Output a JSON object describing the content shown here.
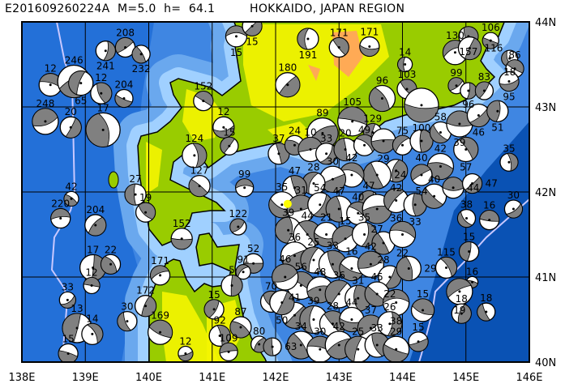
{
  "header": {
    "event_id": "E201609260224A",
    "magnitude": "M=5.0",
    "depth": "h=  64.1",
    "region": "HOKKAIDO, JAPAN REGION"
  },
  "map": {
    "lon_range": [
      138,
      146
    ],
    "lat_range": [
      40,
      44
    ],
    "lon_labels": [
      "138E",
      "139E",
      "140E",
      "141E",
      "142E",
      "143E",
      "144E",
      "145E",
      "146E"
    ],
    "lat_labels": [
      "44N",
      "43N",
      "42N",
      "41N",
      "40N"
    ],
    "grid": true,
    "colors": {
      "deep_ocean": "#2370d8",
      "ocean": "#3f86e2",
      "shelf": "#a0d0ff",
      "trench": "#0a52b4",
      "land": "#99cc00",
      "highland": "#f5f500",
      "peak": "#ffaa55",
      "plate_boundary": "#c8c8ff",
      "compression": "#808080",
      "epicenter": "#ffff00"
    },
    "epicenter": {
      "lon": 142.19,
      "lat": 41.86
    },
    "events": [
      [
        141.38,
        43.83,
        "15",
        5.6
      ],
      [
        141.63,
        43.95,
        "15",
        5.5
      ],
      [
        142.51,
        43.8,
        "191",
        5.6
      ],
      [
        143.0,
        43.7,
        "171",
        5.5
      ],
      [
        143.48,
        43.71,
        "171",
        5.5
      ],
      [
        139.63,
        43.7,
        "208",
        5.5
      ],
      [
        139.32,
        43.66,
        "241",
        5.5
      ],
      [
        139.88,
        43.62,
        "232",
        5.4
      ],
      [
        138.45,
        43.26,
        "12",
        5.7
      ],
      [
        138.82,
        43.3,
        "246",
        6.3
      ],
      [
        138.93,
        43.28,
        "65",
        5.8
      ],
      [
        139.25,
        43.16,
        "12",
        5.6
      ],
      [
        139.61,
        43.1,
        "204",
        5.4
      ],
      [
        138.37,
        42.83,
        "248",
        5.9
      ],
      [
        138.77,
        42.76,
        "20",
        5.6
      ],
      [
        139.28,
        42.73,
        "17",
        6.4
      ],
      [
        140.86,
        43.07,
        "152",
        5.5
      ],
      [
        141.18,
        42.76,
        "12",
        5.6
      ],
      [
        141.27,
        42.54,
        "15",
        5.4
      ],
      [
        140.72,
        42.43,
        "124",
        5.8
      ],
      [
        140.8,
        42.07,
        "127",
        5.6
      ],
      [
        141.51,
        42.05,
        "99",
        5.4
      ],
      [
        142.19,
        43.26,
        "180",
        5.8
      ],
      [
        144.04,
        43.5,
        "14",
        5.2
      ],
      [
        144.07,
        43.21,
        "103",
        5.5
      ],
      [
        144.3,
        43.02,
        "100",
        6.4
      ],
      [
        144.85,
        43.25,
        "99",
        5.3
      ],
      [
        145.04,
        43.19,
        "96",
        5.3
      ],
      [
        143.68,
        43.1,
        "96",
        5.9
      ],
      [
        143.21,
        42.83,
        "105",
        6.1
      ],
      [
        142.74,
        42.69,
        "89",
        6.2
      ],
      [
        143.53,
        42.7,
        "129",
        5.4
      ],
      [
        145.04,
        43.83,
        "157",
        5.5
      ],
      [
        145.39,
        43.78,
        "106",
        5.3
      ],
      [
        144.83,
        43.64,
        "130",
        5.8
      ],
      [
        145.06,
        43.69,
        "116",
        5.7
      ],
      [
        145.69,
        43.57,
        "18",
        5.3
      ],
      [
        145.77,
        43.45,
        "86",
        5.4
      ],
      [
        145.68,
        43.3,
        "95",
        5.5
      ],
      [
        145.29,
        43.19,
        "83",
        5.4
      ],
      [
        145.68,
        42.35,
        "35",
        5.4
      ],
      [
        138.78,
        41.92,
        "42",
        5.2
      ],
      [
        138.61,
        41.69,
        "220",
        5.5
      ],
      [
        139.16,
        41.61,
        "204",
        5.6
      ],
      [
        139.79,
        41.97,
        "27",
        5.6
      ],
      [
        139.95,
        41.76,
        "19",
        5.5
      ],
      [
        140.52,
        41.45,
        "152",
        5.6
      ],
      [
        141.41,
        41.59,
        "122",
        5.3
      ],
      [
        139.12,
        41.11,
        "17",
        5.9
      ],
      [
        139.4,
        41.15,
        "22",
        5.5
      ],
      [
        139.1,
        40.9,
        "12",
        5.3
      ],
      [
        138.72,
        40.73,
        "33",
        5.3
      ],
      [
        138.87,
        40.4,
        "13",
        6.1
      ],
      [
        139.11,
        40.33,
        "14",
        5.6
      ],
      [
        138.73,
        40.1,
        "15",
        5.5
      ],
      [
        140.18,
        41.02,
        "171",
        5.5
      ],
      [
        139.95,
        40.66,
        "172",
        5.6
      ],
      [
        139.66,
        40.48,
        "30",
        5.5
      ],
      [
        140.18,
        40.35,
        "169",
        5.8
      ],
      [
        140.58,
        40.1,
        "12",
        5.2
      ],
      [
        141.03,
        40.62,
        "15",
        5.5
      ],
      [
        141.12,
        40.31,
        "92",
        5.6
      ],
      [
        141.45,
        40.41,
        "87",
        5.6
      ],
      [
        141.26,
        40.12,
        "109",
        5.4
      ],
      [
        141.74,
        40.21,
        "80",
        5.3
      ],
      [
        141.95,
        40.18,
        "63",
        5.4
      ],
      [
        141.93,
        40.71,
        "70",
        5.6
      ],
      [
        141.65,
        41.16,
        "52",
        5.5
      ],
      [
        141.49,
        41.06,
        "91",
        5.2
      ],
      [
        141.31,
        40.9,
        "5",
        5.6
      ],
      [
        145.01,
        41.69,
        "38",
        5.4
      ],
      [
        145.37,
        41.67,
        "16",
        5.5
      ],
      [
        145.75,
        41.8,
        "30",
        5.4
      ],
      [
        145.05,
        41.3,
        "15",
        5.5
      ],
      [
        144.69,
        41.11,
        "115",
        5.6
      ],
      [
        145.1,
        40.94,
        "16",
        5.0
      ],
      [
        144.9,
        40.83,
        "19",
        5.9
      ],
      [
        144.93,
        40.57,
        "18",
        5.5
      ],
      [
        145.32,
        40.59,
        "18",
        5.4
      ],
      [
        144.32,
        40.61,
        "15",
        5.7
      ],
      [
        144.25,
        40.24,
        "15",
        5.5
      ],
      [
        143.47,
        41.9,
        "47",
        5.5
      ],
      [
        142.05,
        42.45,
        "37",
        5.6
      ],
      [
        142.3,
        42.55,
        "24",
        5.5
      ],
      [
        142.55,
        42.5,
        "10",
        5.8
      ],
      [
        142.8,
        42.45,
        "33",
        5.6
      ],
      [
        143.1,
        42.5,
        "20",
        5.7
      ],
      [
        143.4,
        42.55,
        "49",
        5.6
      ],
      [
        143.7,
        42.6,
        "29",
        5.8
      ],
      [
        144.0,
        42.55,
        "75",
        5.5
      ],
      [
        144.3,
        42.6,
        "40",
        5.7
      ],
      [
        144.6,
        42.7,
        "58",
        5.6
      ],
      [
        144.9,
        42.8,
        "39",
        5.9
      ],
      [
        145.2,
        42.9,
        "46",
        5.7
      ],
      [
        145.5,
        42.95,
        "51",
        5.6
      ],
      [
        145.0,
        42.5,
        "57",
        5.8
      ],
      [
        144.6,
        42.3,
        "42",
        5.9
      ],
      [
        144.3,
        42.2,
        "54",
        5.6
      ],
      [
        143.9,
        42.25,
        "42",
        5.7
      ],
      [
        143.6,
        42.2,
        "24",
        6.0
      ],
      [
        143.2,
        42.2,
        "42",
        5.8
      ],
      [
        142.9,
        42.15,
        "30",
        5.9
      ],
      [
        142.6,
        42.1,
        "28",
        5.7
      ],
      [
        142.3,
        42.05,
        "47",
        5.8
      ],
      [
        142.1,
        41.85,
        "35",
        5.9
      ],
      [
        142.4,
        41.8,
        "31",
        6.0
      ],
      [
        142.7,
        41.85,
        "54",
        5.8
      ],
      [
        143.0,
        41.8,
        "47",
        5.9
      ],
      [
        143.3,
        41.75,
        "40",
        5.7
      ],
      [
        143.6,
        41.8,
        "27",
        6.1
      ],
      [
        143.9,
        41.9,
        "36",
        5.8
      ],
      [
        144.2,
        41.85,
        "33",
        5.7
      ],
      [
        144.5,
        41.95,
        "40",
        5.8
      ],
      [
        144.8,
        42.05,
        "44",
        5.6
      ],
      [
        145.1,
        42.1,
        "47",
        5.5
      ],
      [
        142.2,
        41.55,
        "39",
        5.9
      ],
      [
        142.5,
        41.5,
        "44",
        6.0
      ],
      [
        142.8,
        41.5,
        "21",
        5.8
      ],
      [
        143.1,
        41.45,
        "15",
        5.9
      ],
      [
        143.4,
        41.5,
        "35",
        5.8
      ],
      [
        143.7,
        41.4,
        "28",
        5.7
      ],
      [
        144.0,
        41.5,
        "22",
        5.9
      ],
      [
        142.3,
        41.25,
        "36",
        6.0
      ],
      [
        142.6,
        41.2,
        "25",
        5.9
      ],
      [
        142.9,
        41.15,
        "33",
        6.0
      ],
      [
        143.2,
        41.1,
        "16",
        5.8
      ],
      [
        143.5,
        41.15,
        "42",
        5.9
      ],
      [
        143.8,
        41.0,
        "22",
        5.7
      ],
      [
        144.1,
        41.1,
        "29",
        5.8
      ],
      [
        142.4,
        40.9,
        "56",
        6.0
      ],
      [
        142.7,
        40.85,
        "48",
        5.9
      ],
      [
        143.0,
        40.8,
        "36",
        6.0
      ],
      [
        143.3,
        40.75,
        "31",
        5.9
      ],
      [
        143.6,
        40.8,
        "45",
        5.8
      ],
      [
        143.9,
        40.7,
        "38",
        5.9
      ],
      [
        142.3,
        40.55,
        "41",
        5.9
      ],
      [
        142.6,
        40.5,
        "39",
        6.0
      ],
      [
        142.9,
        40.45,
        "28",
        5.9
      ],
      [
        143.2,
        40.5,
        "44",
        5.8
      ],
      [
        143.5,
        40.4,
        "37",
        5.9
      ],
      [
        143.8,
        40.45,
        "26",
        5.8
      ],
      [
        142.4,
        40.2,
        "34",
        6.0
      ],
      [
        142.7,
        40.15,
        "30",
        5.9
      ],
      [
        143.0,
        40.2,
        "42",
        6.0
      ],
      [
        143.3,
        40.15,
        "25",
        5.9
      ],
      [
        143.6,
        40.2,
        "33",
        5.8
      ],
      [
        143.9,
        40.15,
        "29",
        5.9
      ],
      [
        142.15,
        41.0,
        "46",
        5.9
      ],
      [
        142.1,
        40.7,
        "50",
        5.8
      ]
    ]
  }
}
